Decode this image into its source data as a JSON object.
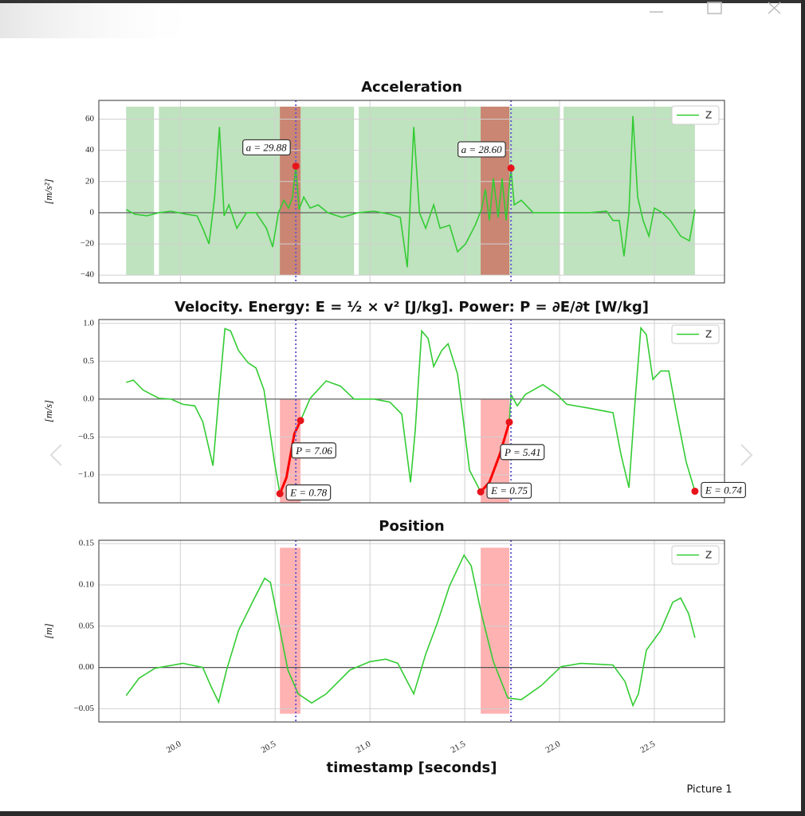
{
  "window": {
    "caption": "Picture 1"
  },
  "chart_data": [
    {
      "type": "line",
      "title": "Acceleration",
      "ylabel": "[m/s²]",
      "x": [
        19.714,
        19.761,
        19.824,
        19.887,
        19.95,
        20.034,
        20.088,
        20.118,
        20.151,
        20.181,
        20.206,
        20.231,
        20.256,
        20.298,
        20.349,
        20.399,
        20.454,
        20.487,
        20.517,
        20.546,
        20.571,
        20.592,
        20.609,
        20.626,
        20.651,
        20.685,
        20.727,
        20.777,
        20.853,
        20.937,
        21.021,
        21.105,
        21.16,
        21.197,
        21.231,
        21.261,
        21.294,
        21.336,
        21.37,
        21.42,
        21.462,
        21.504,
        21.555,
        21.588,
        21.609,
        21.63,
        21.651,
        21.676,
        21.697,
        21.718,
        21.744,
        21.761,
        21.798,
        21.861,
        21.987,
        22.155,
        22.248,
        22.282,
        22.315,
        22.34,
        22.366,
        22.387,
        22.412,
        22.441,
        22.471,
        22.5,
        22.542,
        22.584,
        22.639,
        22.685,
        22.714
      ],
      "series": [
        {
          "name": "Z",
          "color": "#33cc33",
          "values": [
            2,
            -1,
            -2,
            0,
            1,
            -1,
            -2,
            -10,
            -20,
            10,
            55,
            -2,
            5,
            -10,
            0,
            0,
            -10,
            -22,
            0,
            8,
            3,
            10,
            29.88,
            2,
            10,
            3,
            5,
            0,
            -3,
            0,
            1,
            -1,
            -3,
            -35,
            55,
            0,
            -10,
            5,
            -10,
            -8,
            -25,
            -20,
            -8,
            2,
            15,
            -5,
            22,
            -3,
            22,
            -5,
            28.6,
            5,
            8,
            0,
            0,
            0,
            1,
            -5,
            -5,
            -28,
            0,
            62,
            10,
            -5,
            -15,
            3,
            0,
            -5,
            -15,
            -18,
            2
          ]
        }
      ],
      "spans": [
        {
          "x": [
            19.714,
            19.861
          ],
          "y": [
            -40,
            68
          ],
          "color": "#2ca02c"
        },
        {
          "x": [
            19.887,
            20.916
          ],
          "y": [
            -40,
            68
          ],
          "color": "#2ca02c"
        },
        {
          "x": [
            20.941,
            22.0
          ],
          "y": [
            -40,
            68
          ],
          "color": "#2ca02c"
        },
        {
          "x": [
            22.021,
            22.714
          ],
          "y": [
            -40,
            68
          ],
          "color": "#2ca02c"
        },
        {
          "x": [
            20.525,
            20.634
          ],
          "y": [
            -40,
            68
          ],
          "color": "#d62728"
        },
        {
          "x": [
            21.584,
            21.735
          ],
          "y": [
            -40,
            68
          ],
          "color": "#d62728"
        }
      ],
      "hlines": [
        0
      ],
      "vlines": [
        20.609,
        21.744
      ],
      "vline_color": "#6a5acd",
      "points": [
        {
          "x": 20.609,
          "y": 29.88,
          "label": "a = 29.88"
        },
        {
          "x": 21.744,
          "y": 28.6,
          "label": "a = 28.60"
        }
      ],
      "xlim": [
        19.57,
        22.87
      ],
      "ylim": [
        -45,
        72
      ],
      "xticks": [
        20.0,
        20.5,
        21.0,
        21.5,
        22.0,
        22.5
      ],
      "yticks": [
        {
          "value": -40,
          "label": "−40"
        },
        {
          "value": -20,
          "label": "−20"
        },
        0,
        20,
        40,
        60
      ],
      "grid": true,
      "legend": "upper right"
    },
    {
      "type": "line",
      "title": "Velocity. Energy: E = ½ × v² [J/kg]. Power: P = ∂E/∂t [W/kg]",
      "ylabel": "[m/s]",
      "x": [
        19.714,
        19.752,
        19.803,
        19.887,
        19.95,
        20.013,
        20.076,
        20.118,
        20.172,
        20.202,
        20.235,
        20.265,
        20.307,
        20.357,
        20.399,
        20.441,
        20.496,
        20.525,
        20.559,
        20.601,
        20.634,
        20.685,
        20.769,
        20.845,
        20.916,
        21.021,
        21.105,
        21.168,
        21.214,
        21.239,
        21.273,
        21.307,
        21.336,
        21.378,
        21.412,
        21.462,
        21.525,
        21.584,
        21.63,
        21.685,
        21.735,
        21.744,
        21.777,
        21.819,
        21.912,
        21.987,
        22.038,
        22.155,
        22.282,
        22.324,
        22.366,
        22.399,
        22.429,
        22.458,
        22.492,
        22.534,
        22.576,
        22.618,
        22.668,
        22.714
      ],
      "series": [
        {
          "name": "Z",
          "color": "#33cc33",
          "values": [
            0.22,
            0.25,
            0.12,
            0.01,
            0,
            -0.07,
            -0.09,
            -0.3,
            -0.88,
            0,
            0.93,
            0.9,
            0.64,
            0.48,
            0.41,
            0.12,
            -0.83,
            -1.249,
            -1.04,
            -0.46,
            -0.284,
            0.01,
            0.24,
            0.17,
            0,
            0,
            -0.04,
            -0.2,
            -1.1,
            -0.41,
            0.9,
            0.8,
            0.43,
            0.64,
            0.73,
            0.33,
            -0.94,
            -1.225,
            -1.1,
            -0.73,
            -0.305,
            0.06,
            -0.09,
            0.06,
            0.19,
            0.06,
            -0.07,
            -0.12,
            -0.18,
            -0.73,
            -1.17,
            0,
            0.94,
            0.85,
            0.26,
            0.37,
            0.37,
            -0.2,
            -0.83,
            -1.217
          ]
        }
      ],
      "highlights": [
        {
          "color": "#ff0000",
          "x": [
            20.525,
            20.559,
            20.601,
            20.634
          ],
          "values": [
            -1.249,
            -1.04,
            -0.46,
            -0.284
          ]
        },
        {
          "color": "#ff0000",
          "x": [
            21.584,
            21.63,
            21.685,
            21.735
          ],
          "values": [
            -1.225,
            -1.1,
            -0.73,
            -0.305
          ]
        }
      ],
      "spans": [
        {
          "x": [
            20.525,
            20.634
          ],
          "y": [
            -1.37,
            0
          ],
          "color": "#ff0000"
        },
        {
          "x": [
            21.584,
            21.735
          ],
          "y": [
            -1.37,
            0
          ],
          "color": "#ff0000"
        }
      ],
      "hlines": [
        0
      ],
      "vlines": [
        20.609,
        21.744
      ],
      "vline_color": "#6a5acd",
      "points": [
        {
          "x": 20.525,
          "y": -1.249,
          "label": "E = 0.78"
        },
        {
          "x": 20.634,
          "y": -0.284,
          "label": "P = 7.06"
        },
        {
          "x": 21.584,
          "y": -1.225,
          "label": "E = 0.75"
        },
        {
          "x": 21.735,
          "y": -0.305,
          "label": "P = 5.41"
        },
        {
          "x": 22.714,
          "y": -1.217,
          "label": "E = 0.74"
        }
      ],
      "xlim": [
        19.57,
        22.87
      ],
      "ylim": [
        -1.37,
        1.05
      ],
      "xticks": [
        20.0,
        20.5,
        21.0,
        21.5,
        22.0,
        22.5
      ],
      "yticks": [
        {
          "value": -1.0,
          "label": "−1.0"
        },
        {
          "value": -0.5,
          "label": "−0.5"
        },
        {
          "value": 0,
          "label": "0.0"
        },
        0.5,
        {
          "value": 1.0,
          "label": "1.0"
        }
      ],
      "grid": true,
      "legend": "upper right"
    },
    {
      "type": "line",
      "title": "Position",
      "ylabel": "[m]",
      "xlabel": "timestamp [seconds]",
      "x": [
        19.714,
        19.782,
        19.866,
        20.013,
        20.118,
        20.16,
        20.202,
        20.244,
        20.307,
        20.391,
        20.445,
        20.475,
        20.517,
        20.567,
        20.622,
        20.693,
        20.769,
        20.895,
        21.0,
        21.084,
        21.147,
        21.197,
        21.231,
        21.294,
        21.357,
        21.42,
        21.496,
        21.534,
        21.588,
        21.651,
        21.727,
        21.798,
        21.903,
        22.008,
        22.113,
        22.282,
        22.345,
        22.387,
        22.416,
        22.458,
        22.534,
        22.597,
        22.639,
        22.681,
        22.714
      ],
      "series": [
        {
          "name": "Z",
          "color": "#33cc33",
          "values": [
            -0.034,
            -0.013,
            -0.001,
            0.005,
            0,
            -0.022,
            -0.042,
            -0.003,
            0.045,
            0.084,
            0.108,
            0.103,
            0.055,
            -0.003,
            -0.032,
            -0.043,
            -0.032,
            -0.003,
            0.007,
            0.01,
            0.005,
            -0.017,
            -0.032,
            0.016,
            0.055,
            0.099,
            0.136,
            0.123,
            0.065,
            0.007,
            -0.037,
            -0.039,
            -0.022,
            0.001,
            0.005,
            0.003,
            -0.017,
            -0.046,
            -0.032,
            0.021,
            0.045,
            0.079,
            0.084,
            0.065,
            0.036
          ]
        }
      ],
      "spans": [
        {
          "x": [
            20.525,
            20.634
          ],
          "y": [
            -0.056,
            0.145
          ],
          "color": "#ff0000"
        },
        {
          "x": [
            21.584,
            21.735
          ],
          "y": [
            -0.056,
            0.145
          ],
          "color": "#ff0000"
        }
      ],
      "hlines": [
        0
      ],
      "vlines": [
        20.609,
        21.744
      ],
      "vline_color": "#6a5acd",
      "xlim": [
        19.57,
        22.87
      ],
      "ylim": [
        -0.066,
        0.154
      ],
      "xticks": [
        {
          "value": 20.0,
          "label": "20.0"
        },
        {
          "value": 20.5,
          "label": "20.5"
        },
        {
          "value": 21.0,
          "label": "21.0"
        },
        {
          "value": 21.5,
          "label": "21.5"
        },
        {
          "value": 22.0,
          "label": "22.0"
        },
        {
          "value": 22.5,
          "label": "22.5"
        }
      ],
      "yticks": [
        {
          "value": -0.05,
          "label": "−0.05"
        },
        {
          "value": 0,
          "label": "0.00"
        },
        {
          "value": 0.05,
          "label": "0.05"
        },
        {
          "value": 0.1,
          "label": "0.10"
        },
        {
          "value": 0.15,
          "label": "0.15"
        }
      ],
      "grid": true,
      "legend": "upper right"
    }
  ]
}
